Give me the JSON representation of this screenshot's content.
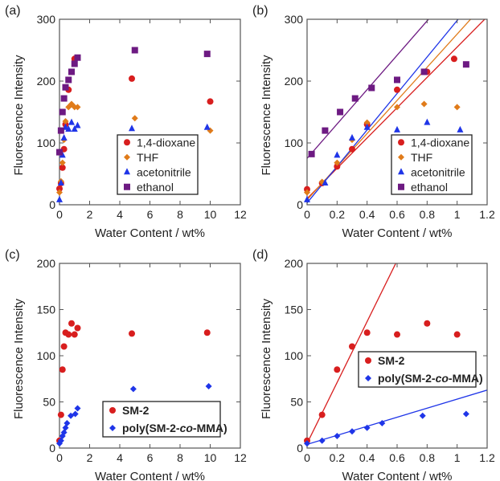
{
  "chart_data": [
    {
      "panel": "(a)",
      "type": "scatter",
      "xlabel": "Water Content / wt%",
      "ylabel": "Fluorescence Intensity",
      "xlim": [
        0,
        12
      ],
      "ylim": [
        0,
        300
      ],
      "xticks": [
        "0",
        "2",
        "4",
        "6",
        "8",
        "10",
        "12"
      ],
      "yticks": [
        "0",
        "100",
        "200",
        "300"
      ],
      "legend_position": "bottom-right",
      "series": [
        {
          "name": "1,4-dioxane",
          "color": "#d81e1e",
          "marker": "circle",
          "points": [
            [
              0.0,
              26
            ],
            [
              0.1,
              35
            ],
            [
              0.2,
              60
            ],
            [
              0.3,
              90
            ],
            [
              0.4,
              130
            ],
            [
              0.6,
              186
            ],
            [
              0.8,
              215
            ],
            [
              1.0,
              236
            ],
            [
              4.8,
              204
            ],
            [
              10.0,
              167
            ]
          ]
        },
        {
          "name": "THF",
          "color": "#e07b1a",
          "marker": "diamond",
          "points": [
            [
              0.0,
              20
            ],
            [
              0.1,
              38
            ],
            [
              0.2,
              68
            ],
            [
              0.3,
              105
            ],
            [
              0.4,
              135
            ],
            [
              0.6,
              158
            ],
            [
              0.8,
              163
            ],
            [
              1.0,
              158
            ],
            [
              1.2,
              158
            ],
            [
              5.0,
              140
            ],
            [
              10.0,
              120
            ]
          ]
        },
        {
          "name": "acetonitrile",
          "color": "#1f35e8",
          "marker": "triangle",
          "points": [
            [
              0.0,
              8
            ],
            [
              0.1,
              35
            ],
            [
              0.2,
              80
            ],
            [
              0.3,
              108
            ],
            [
              0.4,
              125
            ],
            [
              0.6,
              122
            ],
            [
              0.8,
              133
            ],
            [
              1.0,
              122
            ],
            [
              1.2,
              128
            ],
            [
              4.8,
              123
            ],
            [
              9.8,
              125
            ]
          ]
        },
        {
          "name": "ethanol",
          "color": "#6d1a82",
          "marker": "square",
          "points": [
            [
              0.0,
              85
            ],
            [
              0.1,
              120
            ],
            [
              0.2,
              150
            ],
            [
              0.3,
              172
            ],
            [
              0.4,
              190
            ],
            [
              0.6,
              202
            ],
            [
              0.8,
              215
            ],
            [
              1.0,
              228
            ],
            [
              1.2,
              238
            ],
            [
              5.0,
              250
            ],
            [
              9.8,
              244
            ]
          ]
        }
      ]
    },
    {
      "panel": "(b)",
      "type": "scatter",
      "xlabel": "Water Content / wt%",
      "ylabel": "Fluorescence Intensity",
      "xlim": [
        0,
        1.2
      ],
      "ylim": [
        0,
        300
      ],
      "xticks": [
        "0",
        "0.2",
        "0.4",
        "0.6",
        "0.8",
        "1",
        "1.2"
      ],
      "yticks": [
        "0",
        "100",
        "200",
        "300"
      ],
      "legend_position": "bottom-right",
      "fit_lines": [
        {
          "series": "1,4-dioxane",
          "color": "#d81e1e",
          "slope": 245,
          "intercept": 10
        },
        {
          "series": "THF",
          "color": "#e07b1a",
          "slope": 268,
          "intercept": 8
        },
        {
          "series": "acetonitrile",
          "color": "#1f35e8",
          "slope": 295,
          "intercept": 3
        },
        {
          "series": "ethanol",
          "color": "#6d1a82",
          "slope": 278,
          "intercept": 75
        }
      ],
      "series": [
        {
          "name": "1,4-dioxane",
          "color": "#d81e1e",
          "marker": "circle",
          "points": [
            [
              0.0,
              25
            ],
            [
              0.1,
              35
            ],
            [
              0.2,
              62
            ],
            [
              0.3,
              90
            ],
            [
              0.4,
              130
            ],
            [
              0.6,
              186
            ],
            [
              0.8,
              215
            ],
            [
              0.98,
              236
            ]
          ]
        },
        {
          "name": "THF",
          "color": "#e07b1a",
          "marker": "diamond",
          "points": [
            [
              0.0,
              20
            ],
            [
              0.1,
              37
            ],
            [
              0.2,
              68
            ],
            [
              0.3,
              105
            ],
            [
              0.4,
              133
            ],
            [
              0.6,
              158
            ],
            [
              0.78,
              163
            ],
            [
              1.0,
              158
            ]
          ]
        },
        {
          "name": "acetonitrile",
          "color": "#1f35e8",
          "marker": "triangle",
          "points": [
            [
              0.0,
              8
            ],
            [
              0.12,
              35
            ],
            [
              0.2,
              80
            ],
            [
              0.3,
              108
            ],
            [
              0.4,
              125
            ],
            [
              0.6,
              121
            ],
            [
              0.8,
              133
            ],
            [
              1.02,
              121
            ]
          ]
        },
        {
          "name": "ethanol",
          "color": "#6d1a82",
          "marker": "square",
          "points": [
            [
              0.03,
              82
            ],
            [
              0.12,
              120
            ],
            [
              0.22,
              150
            ],
            [
              0.32,
              172
            ],
            [
              0.43,
              189
            ],
            [
              0.6,
              202
            ],
            [
              0.78,
              215
            ],
            [
              1.06,
              227
            ]
          ]
        }
      ]
    },
    {
      "panel": "(c)",
      "type": "scatter",
      "xlabel": "Water Content / wt%",
      "ylabel": "Fluorescence Intensity",
      "xlim": [
        0,
        12
      ],
      "ylim": [
        0,
        200
      ],
      "xticks": [
        "0",
        "2",
        "4",
        "6",
        "8",
        "10",
        "12"
      ],
      "yticks": [
        "0",
        "50",
        "100",
        "150",
        "200"
      ],
      "legend_position": "bottom-right",
      "series": [
        {
          "name": "SM-2",
          "color": "#d81e1e",
          "marker": "circle",
          "points": [
            [
              0.0,
              8
            ],
            [
              0.1,
              36
            ],
            [
              0.2,
              85
            ],
            [
              0.3,
              110
            ],
            [
              0.4,
              125
            ],
            [
              0.6,
              123
            ],
            [
              0.8,
              135
            ],
            [
              1.0,
              123
            ],
            [
              1.2,
              130
            ],
            [
              4.8,
              124
            ],
            [
              9.8,
              125
            ]
          ]
        },
        {
          "name": "poly(SM-2-co-MMA)",
          "color": "#1f35e8",
          "marker": "diamond",
          "points": [
            [
              0.0,
              5
            ],
            [
              0.1,
              8
            ],
            [
              0.2,
              13
            ],
            [
              0.3,
              17
            ],
            [
              0.4,
              22
            ],
            [
              0.5,
              27
            ],
            [
              0.75,
              35
            ],
            [
              1.05,
              37
            ],
            [
              1.2,
              43
            ],
            [
              4.9,
              64
            ],
            [
              9.9,
              67
            ]
          ]
        }
      ]
    },
    {
      "panel": "(d)",
      "type": "scatter",
      "xlabel": "Water Content / wt%",
      "ylabel": "Fluorescence Intensity",
      "xlim": [
        0,
        1.2
      ],
      "ylim": [
        0,
        200
      ],
      "xticks": [
        "0",
        "0.2",
        "0.4",
        "0.6",
        "0.8",
        "1",
        "1.2"
      ],
      "yticks": [
        "0",
        "50",
        "100",
        "150",
        "200"
      ],
      "legend_position": "center",
      "fit_lines": [
        {
          "series": "SM-2",
          "color": "#d81e1e",
          "slope": 330,
          "intercept": 5
        },
        {
          "series": "poly(SM-2-co-MMA)",
          "color": "#1f35e8",
          "slope": 49,
          "intercept": 4
        }
      ],
      "series": [
        {
          "name": "SM-2",
          "color": "#d81e1e",
          "marker": "circle",
          "points": [
            [
              0.0,
              8
            ],
            [
              0.1,
              36
            ],
            [
              0.2,
              85
            ],
            [
              0.3,
              110
            ],
            [
              0.4,
              125
            ],
            [
              0.6,
              123
            ],
            [
              0.8,
              135
            ],
            [
              1.0,
              123
            ]
          ]
        },
        {
          "name": "poly(SM-2-co-MMA)",
          "color": "#1f35e8",
          "marker": "diamond",
          "points": [
            [
              0.0,
              5
            ],
            [
              0.1,
              8
            ],
            [
              0.2,
              13
            ],
            [
              0.3,
              18
            ],
            [
              0.4,
              22
            ],
            [
              0.5,
              27
            ],
            [
              0.77,
              35
            ],
            [
              1.06,
              37
            ]
          ]
        }
      ]
    }
  ]
}
